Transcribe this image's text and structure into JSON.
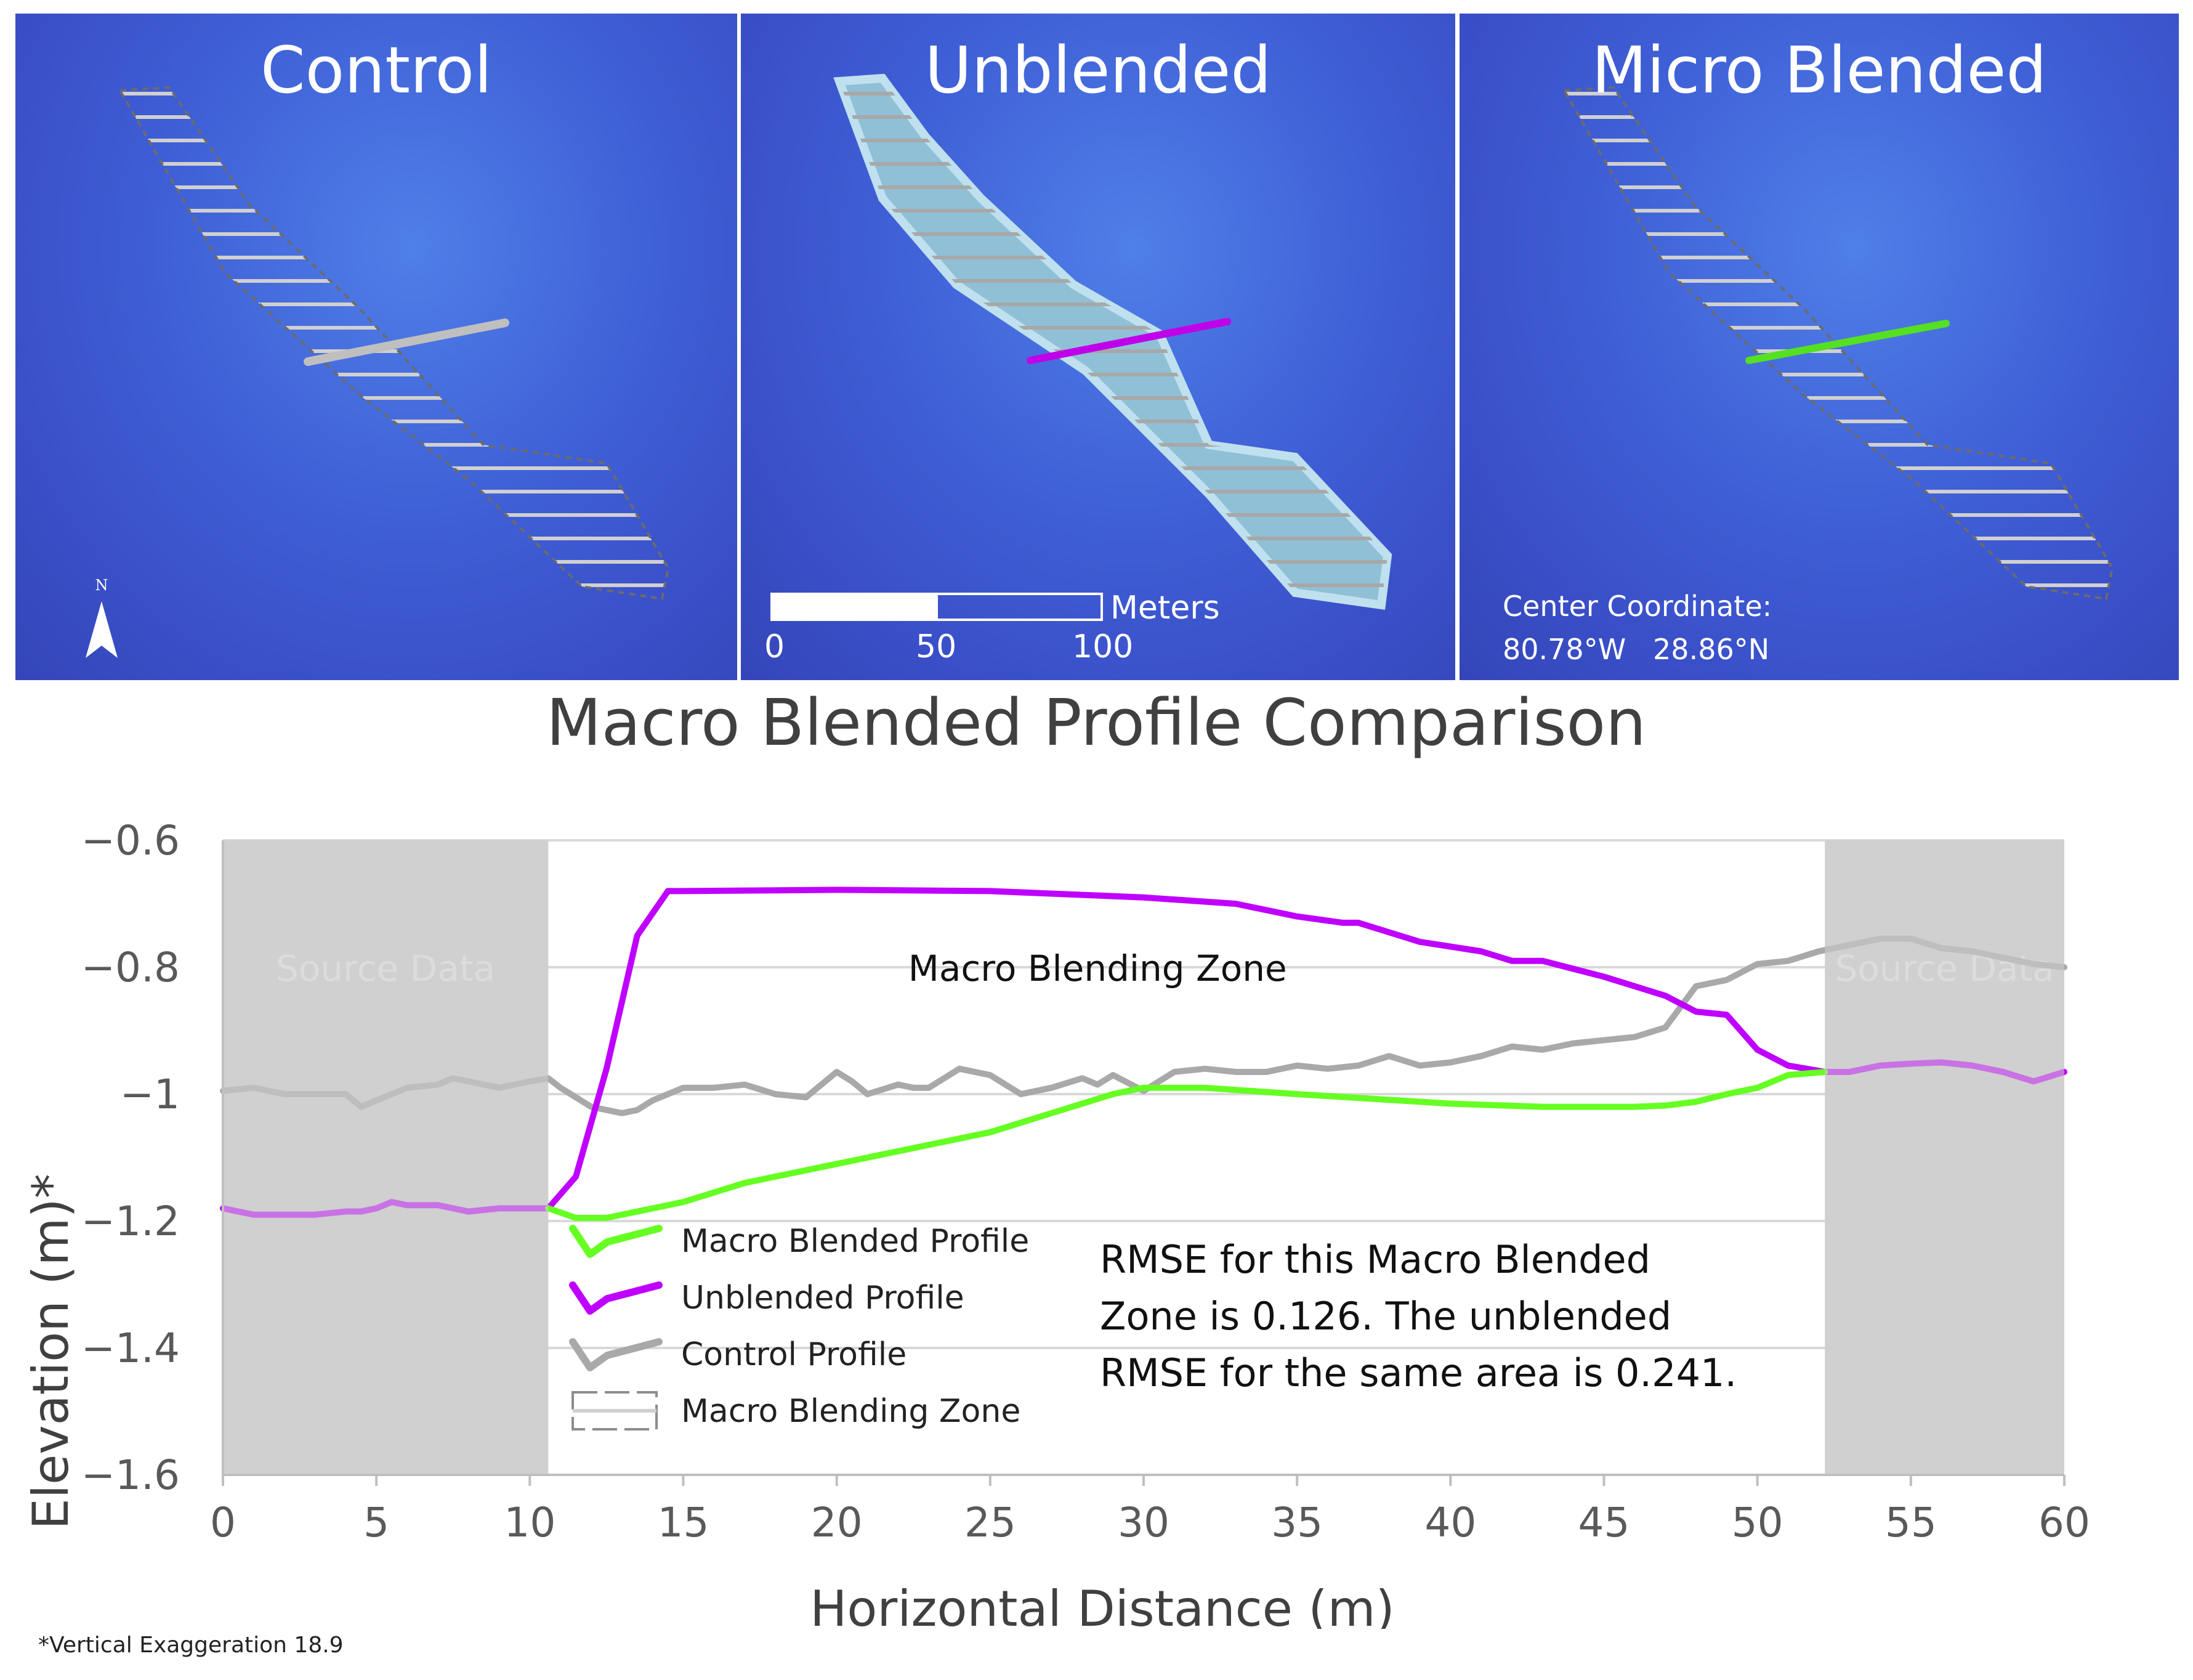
{
  "panels": [
    {
      "title": "Control",
      "line_color": "#bfbfbf"
    },
    {
      "title": "Unblended",
      "line_color": "#c000e8"
    },
    {
      "title": "Micro Blended",
      "line_color": "#55e022"
    }
  ],
  "north_arrow": {
    "label": "N",
    "icon": "north-arrow-icon"
  },
  "scale_bar": {
    "unit": "Meters",
    "ticks": [
      "0",
      "50",
      "100"
    ]
  },
  "center_coordinate": {
    "label": "Center Coordinate:",
    "value": "80.78°W   28.86°N"
  },
  "colors": {
    "macro": "#66ff22",
    "unblended": "#bf00ff",
    "control": "#a9a9a9",
    "shade": "#d0d0d0"
  },
  "footnote": "*Vertical Exaggeration 18.9",
  "chart_data": {
    "type": "line",
    "title": "Macro Blended Profile Comparison",
    "xlabel": "Horizontal Distance (m)",
    "ylabel": "Elevation (m)*",
    "xlim": [
      0,
      60
    ],
    "ylim": [
      -1.6,
      -0.6
    ],
    "xticks": [
      0,
      5,
      10,
      15,
      20,
      25,
      30,
      35,
      40,
      45,
      50,
      55,
      60
    ],
    "yticks": [
      -0.6,
      -0.8,
      -1,
      -1.2,
      -1.4,
      -1.6
    ],
    "ytick_labels": [
      "−0.6",
      "−0.8",
      "−1",
      "−1.2",
      "−1.4",
      "−1.6"
    ],
    "source_regions": [
      [
        0,
        10.6
      ],
      [
        52.2,
        60
      ]
    ],
    "source_label": "Source Data",
    "zone_label": "Macro Blending Zone",
    "rmse_text": [
      "RMSE for this Macro Blended",
      "Zone is 0.126. The unblended",
      "RMSE for the same area is 0.241."
    ],
    "legend": [
      "Macro Blended Profile",
      "Unblended Profile",
      "Control Profile",
      "Macro Blending Zone"
    ],
    "series": [
      {
        "name": "Control Profile",
        "x": [
          0,
          1,
          2,
          3,
          4,
          4.5,
          5,
          6,
          7,
          7.5,
          8,
          9,
          10,
          10.6,
          11,
          12,
          13,
          13.5,
          14,
          15,
          16,
          17,
          18,
          19,
          20,
          20.5,
          21,
          22,
          22.5,
          23,
          24,
          25,
          26,
          27,
          28,
          28.5,
          29,
          30,
          31,
          32,
          33,
          34,
          35,
          36,
          37,
          38,
          39,
          40,
          41,
          42,
          43,
          44,
          45,
          46,
          47,
          48,
          49,
          50,
          51,
          52,
          53,
          54,
          55,
          56,
          57,
          58,
          59,
          60
        ],
        "y": [
          -0.995,
          -0.99,
          -1.0,
          -1.0,
          -1.0,
          -1.02,
          -1.01,
          -0.99,
          -0.985,
          -0.975,
          -0.98,
          -0.99,
          -0.98,
          -0.975,
          -0.99,
          -1.02,
          -1.03,
          -1.025,
          -1.01,
          -0.99,
          -0.99,
          -0.985,
          -1.0,
          -1.005,
          -0.965,
          -0.98,
          -1.0,
          -0.985,
          -0.99,
          -0.99,
          -0.96,
          -0.97,
          -1.0,
          -0.99,
          -0.975,
          -0.985,
          -0.97,
          -0.995,
          -0.965,
          -0.96,
          -0.965,
          -0.965,
          -0.955,
          -0.96,
          -0.955,
          -0.94,
          -0.955,
          -0.95,
          -0.94,
          -0.925,
          -0.93,
          -0.92,
          -0.915,
          -0.91,
          -0.895,
          -0.83,
          -0.82,
          -0.795,
          -0.79,
          -0.775,
          -0.765,
          -0.755,
          -0.755,
          -0.77,
          -0.775,
          -0.785,
          -0.795,
          -0.8
        ]
      },
      {
        "name": "Unblended Profile",
        "x": [
          0,
          1,
          2,
          3,
          4,
          4.5,
          5,
          5.5,
          6,
          7,
          8,
          9,
          10,
          10.6,
          11.5,
          12.5,
          13.5,
          14.5,
          15,
          20,
          25,
          30,
          33,
          35,
          36.5,
          37,
          39,
          41,
          42,
          43,
          45,
          47,
          48,
          49,
          50,
          51,
          52.2,
          53,
          54,
          55,
          56,
          57,
          58,
          59,
          60
        ],
        "y": [
          -1.18,
          -1.19,
          -1.19,
          -1.19,
          -1.185,
          -1.185,
          -1.18,
          -1.17,
          -1.175,
          -1.175,
          -1.185,
          -1.18,
          -1.18,
          -1.18,
          -1.13,
          -0.96,
          -0.75,
          -0.68,
          -0.68,
          -0.678,
          -0.68,
          -0.69,
          -0.7,
          -0.72,
          -0.73,
          -0.73,
          -0.76,
          -0.775,
          -0.79,
          -0.79,
          -0.815,
          -0.845,
          -0.87,
          -0.875,
          -0.93,
          -0.955,
          -0.965,
          -0.965,
          -0.955,
          -0.952,
          -0.95,
          -0.955,
          -0.965,
          -0.98,
          -0.965
        ]
      },
      {
        "name": "Macro Blended Profile",
        "x": [
          10.6,
          11.5,
          12.5,
          13.5,
          15,
          17,
          20,
          22,
          25,
          27,
          29,
          30,
          32,
          35,
          40,
          43,
          46,
          47,
          48,
          49,
          50,
          51,
          52.2
        ],
        "y": [
          -1.18,
          -1.195,
          -1.195,
          -1.185,
          -1.17,
          -1.14,
          -1.11,
          -1.09,
          -1.06,
          -1.03,
          -1.0,
          -0.99,
          -0.99,
          -1.0,
          -1.015,
          -1.02,
          -1.02,
          -1.018,
          -1.012,
          -1.0,
          -0.99,
          -0.97,
          -0.965
        ]
      }
    ]
  }
}
